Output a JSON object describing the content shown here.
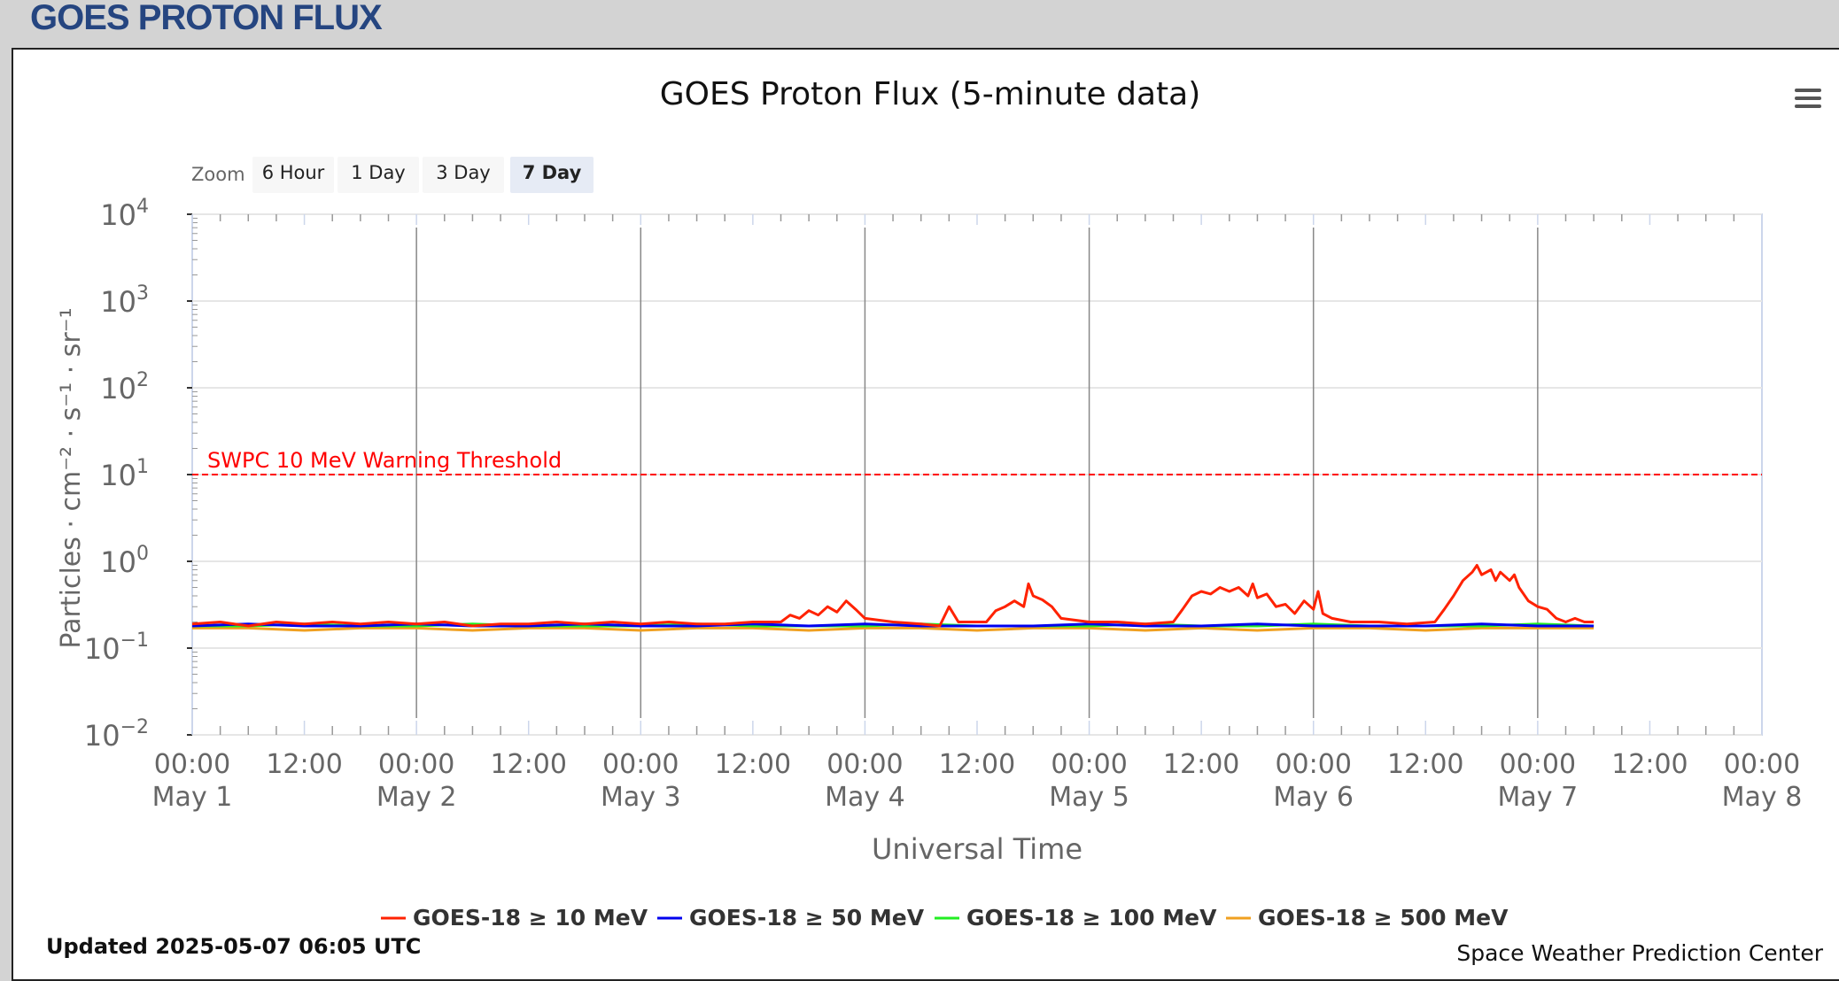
{
  "page_header": "GOES PROTON FLUX",
  "menu_icon": "hamburger-menu-icon",
  "zoom": {
    "label": "Zoom",
    "buttons": [
      "6 Hour",
      "1 Day",
      "3 Day",
      "7 Day"
    ],
    "selected": "7 Day"
  },
  "updated": "Updated 2025-05-07 06:05 UTC",
  "credit": "Space Weather Prediction Center",
  "chart_data": {
    "type": "line",
    "title": "GOES Proton Flux (5-minute data)",
    "xlabel": "Universal Time",
    "ylabel": "Particles · cm⁻² · s⁻¹ · sr⁻¹",
    "yscale": "log",
    "ylim": [
      0.01,
      10000
    ],
    "y_ticks": [
      {
        "base": "10",
        "exp": "4"
      },
      {
        "base": "10",
        "exp": "3"
      },
      {
        "base": "10",
        "exp": "2"
      },
      {
        "base": "10",
        "exp": "1"
      },
      {
        "base": "10",
        "exp": "0"
      },
      {
        "base": "10",
        "exp": "−1"
      },
      {
        "base": "10",
        "exp": "−2"
      }
    ],
    "x_unit": "hours since May 1 00:00 UTC",
    "xlim": [
      0,
      168
    ],
    "x_ticks": [
      {
        "time": "00:00",
        "date": "May 1"
      },
      {
        "time": "12:00",
        "date": ""
      },
      {
        "time": "00:00",
        "date": "May 2"
      },
      {
        "time": "12:00",
        "date": ""
      },
      {
        "time": "00:00",
        "date": "May 3"
      },
      {
        "time": "12:00",
        "date": ""
      },
      {
        "time": "00:00",
        "date": "May 4"
      },
      {
        "time": "12:00",
        "date": ""
      },
      {
        "time": "00:00",
        "date": "May 5"
      },
      {
        "time": "12:00",
        "date": ""
      },
      {
        "time": "00:00",
        "date": "May 6"
      },
      {
        "time": "12:00",
        "date": ""
      },
      {
        "time": "00:00",
        "date": "May 7"
      },
      {
        "time": "12:00",
        "date": ""
      },
      {
        "time": "00:00",
        "date": "May 8"
      }
    ],
    "threshold": {
      "label": "SWPC 10 MeV Warning Threshold",
      "value": 10,
      "color": "#ff0000"
    },
    "series": [
      {
        "name": "GOES-18 ≥ 10 MeV",
        "color": "#ff2200",
        "points": [
          [
            0,
            0.19
          ],
          [
            3,
            0.2
          ],
          [
            6,
            0.18
          ],
          [
            9,
            0.2
          ],
          [
            12,
            0.19
          ],
          [
            15,
            0.2
          ],
          [
            18,
            0.19
          ],
          [
            21,
            0.2
          ],
          [
            24,
            0.19
          ],
          [
            27,
            0.2
          ],
          [
            30,
            0.18
          ],
          [
            33,
            0.19
          ],
          [
            36,
            0.19
          ],
          [
            39,
            0.2
          ],
          [
            42,
            0.19
          ],
          [
            45,
            0.2
          ],
          [
            48,
            0.19
          ],
          [
            51,
            0.2
          ],
          [
            54,
            0.19
          ],
          [
            57,
            0.19
          ],
          [
            60,
            0.2
          ],
          [
            63,
            0.2
          ],
          [
            64,
            0.24
          ],
          [
            65,
            0.22
          ],
          [
            66,
            0.27
          ],
          [
            67,
            0.24
          ],
          [
            68,
            0.3
          ],
          [
            69,
            0.26
          ],
          [
            70,
            0.35
          ],
          [
            71,
            0.28
          ],
          [
            72,
            0.22
          ],
          [
            75,
            0.2
          ],
          [
            78,
            0.19
          ],
          [
            80,
            0.18
          ],
          [
            81,
            0.3
          ],
          [
            82,
            0.2
          ],
          [
            85,
            0.2
          ],
          [
            86,
            0.27
          ],
          [
            87,
            0.3
          ],
          [
            88,
            0.35
          ],
          [
            89,
            0.3
          ],
          [
            89.5,
            0.55
          ],
          [
            90,
            0.4
          ],
          [
            91,
            0.36
          ],
          [
            92,
            0.3
          ],
          [
            93,
            0.22
          ],
          [
            96,
            0.2
          ],
          [
            99,
            0.2
          ],
          [
            102,
            0.19
          ],
          [
            105,
            0.2
          ],
          [
            106,
            0.28
          ],
          [
            107,
            0.4
          ],
          [
            108,
            0.45
          ],
          [
            109,
            0.42
          ],
          [
            110,
            0.5
          ],
          [
            111,
            0.45
          ],
          [
            112,
            0.5
          ],
          [
            113,
            0.4
          ],
          [
            113.5,
            0.55
          ],
          [
            114,
            0.38
          ],
          [
            115,
            0.42
          ],
          [
            116,
            0.3
          ],
          [
            117,
            0.32
          ],
          [
            118,
            0.25
          ],
          [
            119,
            0.35
          ],
          [
            120,
            0.28
          ],
          [
            120.5,
            0.45
          ],
          [
            121,
            0.25
          ],
          [
            122,
            0.22
          ],
          [
            124,
            0.2
          ],
          [
            127,
            0.2
          ],
          [
            130,
            0.19
          ],
          [
            133,
            0.2
          ],
          [
            134,
            0.28
          ],
          [
            135,
            0.4
          ],
          [
            136,
            0.6
          ],
          [
            137,
            0.75
          ],
          [
            137.5,
            0.9
          ],
          [
            138,
            0.7
          ],
          [
            139,
            0.8
          ],
          [
            139.5,
            0.6
          ],
          [
            140,
            0.75
          ],
          [
            141,
            0.6
          ],
          [
            141.5,
            0.7
          ],
          [
            142,
            0.5
          ],
          [
            143,
            0.35
          ],
          [
            144,
            0.3
          ],
          [
            145,
            0.28
          ],
          [
            146,
            0.22
          ],
          [
            147,
            0.2
          ],
          [
            148,
            0.22
          ],
          [
            149,
            0.2
          ],
          [
            150,
            0.2
          ]
        ]
      },
      {
        "name": "GOES-18 ≥ 50 MeV",
        "color": "#0000ee",
        "points": [
          [
            0,
            0.18
          ],
          [
            6,
            0.19
          ],
          [
            12,
            0.18
          ],
          [
            18,
            0.18
          ],
          [
            24,
            0.19
          ],
          [
            30,
            0.18
          ],
          [
            36,
            0.18
          ],
          [
            42,
            0.19
          ],
          [
            48,
            0.18
          ],
          [
            54,
            0.18
          ],
          [
            60,
            0.19
          ],
          [
            66,
            0.18
          ],
          [
            72,
            0.19
          ],
          [
            78,
            0.18
          ],
          [
            84,
            0.18
          ],
          [
            90,
            0.18
          ],
          [
            96,
            0.19
          ],
          [
            102,
            0.18
          ],
          [
            108,
            0.18
          ],
          [
            114,
            0.19
          ],
          [
            120,
            0.18
          ],
          [
            126,
            0.18
          ],
          [
            132,
            0.18
          ],
          [
            138,
            0.19
          ],
          [
            144,
            0.18
          ],
          [
            150,
            0.18
          ]
        ]
      },
      {
        "name": "GOES-18 ≥ 100 MeV",
        "color": "#22ee22",
        "points": [
          [
            0,
            0.18
          ],
          [
            6,
            0.18
          ],
          [
            12,
            0.19
          ],
          [
            18,
            0.18
          ],
          [
            24,
            0.18
          ],
          [
            30,
            0.19
          ],
          [
            36,
            0.18
          ],
          [
            42,
            0.18
          ],
          [
            48,
            0.18
          ],
          [
            54,
            0.19
          ],
          [
            60,
            0.18
          ],
          [
            66,
            0.18
          ],
          [
            72,
            0.18
          ],
          [
            78,
            0.19
          ],
          [
            84,
            0.18
          ],
          [
            90,
            0.18
          ],
          [
            96,
            0.18
          ],
          [
            102,
            0.19
          ],
          [
            108,
            0.18
          ],
          [
            114,
            0.18
          ],
          [
            120,
            0.19
          ],
          [
            126,
            0.18
          ],
          [
            132,
            0.18
          ],
          [
            138,
            0.18
          ],
          [
            144,
            0.19
          ],
          [
            150,
            0.18
          ]
        ]
      },
      {
        "name": "GOES-18 ≥ 500 MeV",
        "color": "#f0a020",
        "points": [
          [
            0,
            0.17
          ],
          [
            6,
            0.17
          ],
          [
            12,
            0.16
          ],
          [
            18,
            0.17
          ],
          [
            24,
            0.17
          ],
          [
            30,
            0.16
          ],
          [
            36,
            0.17
          ],
          [
            42,
            0.17
          ],
          [
            48,
            0.16
          ],
          [
            54,
            0.17
          ],
          [
            60,
            0.17
          ],
          [
            66,
            0.16
          ],
          [
            72,
            0.17
          ],
          [
            78,
            0.17
          ],
          [
            84,
            0.16
          ],
          [
            90,
            0.17
          ],
          [
            96,
            0.17
          ],
          [
            102,
            0.16
          ],
          [
            108,
            0.17
          ],
          [
            114,
            0.16
          ],
          [
            120,
            0.17
          ],
          [
            126,
            0.17
          ],
          [
            132,
            0.16
          ],
          [
            138,
            0.17
          ],
          [
            144,
            0.17
          ],
          [
            150,
            0.17
          ]
        ]
      }
    ]
  }
}
